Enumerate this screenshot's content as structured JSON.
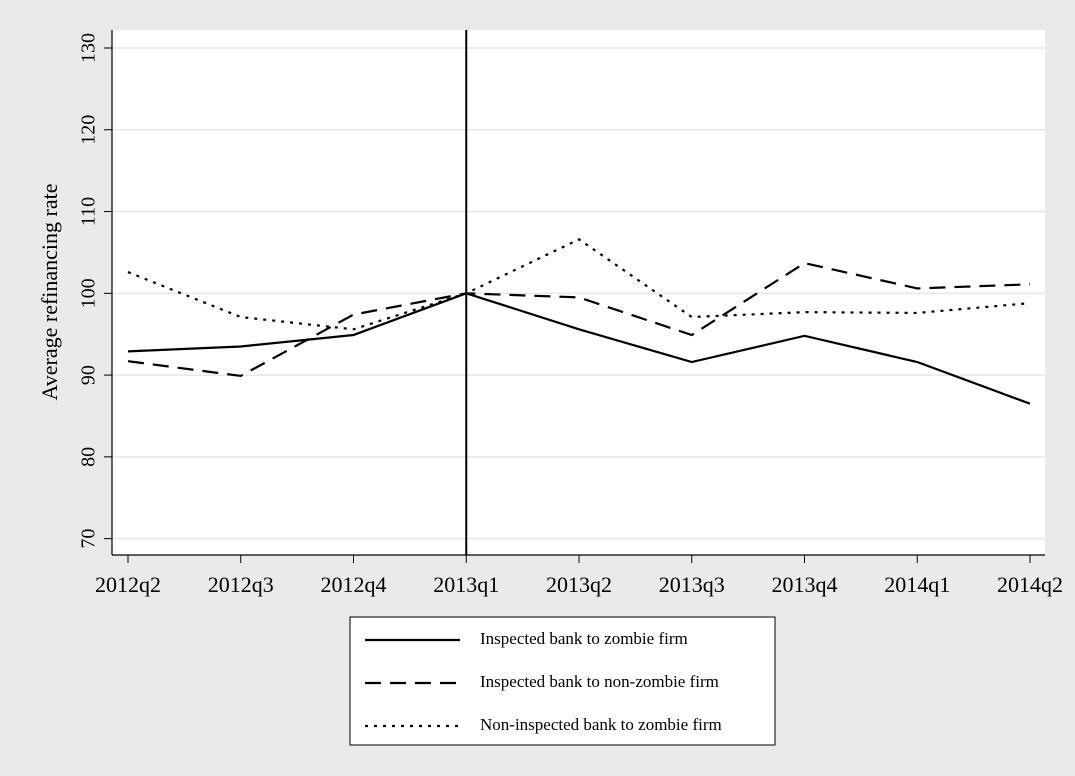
{
  "chart_data": {
    "type": "line",
    "y_label": "Average refinancing rate",
    "categories": [
      "2012q2",
      "2012q3",
      "2012q4",
      "2013q1",
      "2013q2",
      "2013q3",
      "2013q4",
      "2014q1",
      "2014q2"
    ],
    "series": [
      {
        "name": "Inspected bank to zombie firm",
        "color": "#000000",
        "dash": "solid",
        "values": [
          92.9,
          93.5,
          94.9,
          100,
          95.6,
          91.6,
          94.8,
          91.6,
          86.5
        ]
      },
      {
        "name": "Inspected bank to non-zombie firm",
        "color": "#000000",
        "dash": "dashed",
        "values": [
          91.7,
          89.9,
          97.4,
          100,
          99.5,
          94.9,
          103.7,
          100.6,
          101.1
        ]
      },
      {
        "name": "Non-inspected bank to zombie firm",
        "color": "#000000",
        "dash": "dotted",
        "values": [
          102.6,
          97.1,
          95.6,
          100,
          106.6,
          97.1,
          97.7,
          97.6,
          98.8
        ]
      }
    ],
    "reference_line": "2013q1",
    "ylim": [
      68,
      132.2
    ],
    "yticks": [
      70,
      80,
      90,
      100,
      110,
      120,
      130
    ],
    "grid": true,
    "legend": "bottom"
  }
}
